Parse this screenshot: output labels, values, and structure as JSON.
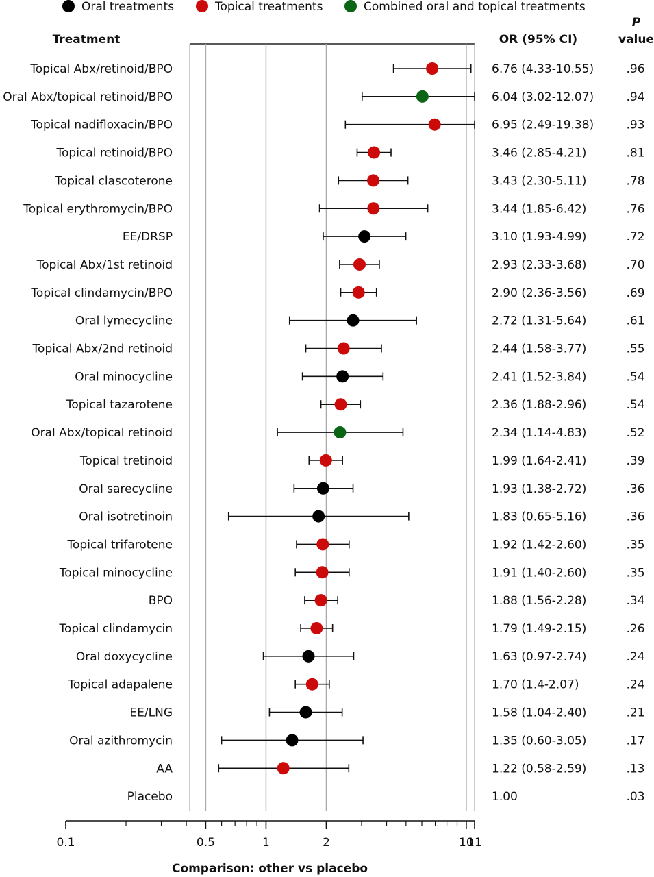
{
  "chart_data": {
    "type": "forest",
    "legend": [
      {
        "name": "Oral treatments",
        "color": "#000000"
      },
      {
        "name": "Topical treatments",
        "color": "#cc0a0a"
      },
      {
        "name": "Combined oral and topical treatments",
        "color": "#0a6614"
      }
    ],
    "legend_position": "top",
    "headers": {
      "treatment": "Treatment",
      "or": "OR (95% CI)",
      "p_line1": "P",
      "p_line2": "value"
    },
    "xlabel": "Comparison: other vs placebo",
    "x_scale": "log",
    "xlim": [
      0.1,
      11
    ],
    "x_ticks": [
      "0.1",
      "0.5",
      "1",
      "2",
      "10",
      "11"
    ],
    "x_tick_values": [
      0.1,
      0.5,
      1,
      2,
      10,
      11
    ],
    "gridlines": [
      0.5,
      1,
      2,
      10
    ],
    "rows": [
      {
        "label": "Topical Abx/retinoid/BPO",
        "group": "Topical treatments",
        "or": 6.76,
        "lo": 4.33,
        "hi": 10.55,
        "or_text": "6.76 (4.33-10.55)",
        "p": ".96"
      },
      {
        "label": "Oral Abx/topical retinoid/BPO",
        "group": "Combined oral and topical treatments",
        "or": 6.04,
        "lo": 3.02,
        "hi": 12.07,
        "or_text": "6.04 (3.02-12.07)",
        "p": ".94"
      },
      {
        "label": "Topical nadifloxacin/BPO",
        "group": "Topical treatments",
        "or": 6.95,
        "lo": 2.49,
        "hi": 19.38,
        "or_text": "6.95 (2.49-19.38)",
        "p": ".93"
      },
      {
        "label": "Topical retinoid/BPO",
        "group": "Topical treatments",
        "or": 3.46,
        "lo": 2.85,
        "hi": 4.21,
        "or_text": "3.46 (2.85-4.21)",
        "p": ".81"
      },
      {
        "label": "Topical clascoterone",
        "group": "Topical treatments",
        "or": 3.43,
        "lo": 2.3,
        "hi": 5.11,
        "or_text": "3.43 (2.30-5.11)",
        "p": ".78"
      },
      {
        "label": "Topical erythromycin/BPO",
        "group": "Topical treatments",
        "or": 3.44,
        "lo": 1.85,
        "hi": 6.42,
        "or_text": "3.44 (1.85-6.42)",
        "p": ".76"
      },
      {
        "label": "EE/DRSP",
        "group": "Oral treatments",
        "or": 3.1,
        "lo": 1.93,
        "hi": 4.99,
        "or_text": "3.10 (1.93-4.99)",
        "p": ".72"
      },
      {
        "label": "Topical Abx/1st retinoid",
        "group": "Topical treatments",
        "or": 2.93,
        "lo": 2.33,
        "hi": 3.68,
        "or_text": "2.93 (2.33-3.68)",
        "p": ".70"
      },
      {
        "label": "Topical clindamycin/BPO",
        "group": "Topical treatments",
        "or": 2.9,
        "lo": 2.36,
        "hi": 3.56,
        "or_text": "2.90 (2.36-3.56)",
        "p": ".69"
      },
      {
        "label": "Oral lymecycline",
        "group": "Oral treatments",
        "or": 2.72,
        "lo": 1.31,
        "hi": 5.64,
        "or_text": "2.72 (1.31-5.64)",
        "p": ".61"
      },
      {
        "label": "Topical Abx/2nd retinoid",
        "group": "Topical treatments",
        "or": 2.44,
        "lo": 1.58,
        "hi": 3.77,
        "or_text": "2.44 (1.58-3.77)",
        "p": ".55"
      },
      {
        "label": "Oral minocycline",
        "group": "Oral treatments",
        "or": 2.41,
        "lo": 1.52,
        "hi": 3.84,
        "or_text": "2.41 (1.52-3.84)",
        "p": ".54"
      },
      {
        "label": "Topical tazarotene",
        "group": "Topical treatments",
        "or": 2.36,
        "lo": 1.88,
        "hi": 2.96,
        "or_text": "2.36 (1.88-2.96)",
        "p": ".54"
      },
      {
        "label": "Oral Abx/topical retinoid",
        "group": "Combined oral and topical treatments",
        "or": 2.34,
        "lo": 1.14,
        "hi": 4.83,
        "or_text": "2.34 (1.14-4.83)",
        "p": ".52"
      },
      {
        "label": "Topical tretinoid",
        "group": "Topical treatments",
        "or": 1.99,
        "lo": 1.64,
        "hi": 2.41,
        "or_text": "1.99 (1.64-2.41)",
        "p": ".39"
      },
      {
        "label": "Oral sarecycline",
        "group": "Oral treatments",
        "or": 1.93,
        "lo": 1.38,
        "hi": 2.72,
        "or_text": "1.93 (1.38-2.72)",
        "p": ".36"
      },
      {
        "label": "Oral isotretinoin",
        "group": "Oral treatments",
        "or": 1.83,
        "lo": 0.65,
        "hi": 5.16,
        "or_text": "1.83 (0.65-5.16)",
        "p": ".36"
      },
      {
        "label": "Topical trifarotene",
        "group": "Topical treatments",
        "or": 1.92,
        "lo": 1.42,
        "hi": 2.6,
        "or_text": "1.92 (1.42-2.60)",
        "p": ".35"
      },
      {
        "label": "Topical minocycline",
        "group": "Topical treatments",
        "or": 1.91,
        "lo": 1.4,
        "hi": 2.6,
        "or_text": "1.91 (1.40-2.60)",
        "p": ".35"
      },
      {
        "label": "BPO",
        "group": "Topical treatments",
        "or": 1.88,
        "lo": 1.56,
        "hi": 2.28,
        "or_text": "1.88 (1.56-2.28)",
        "p": ".34"
      },
      {
        "label": "Topical clindamycin",
        "group": "Topical treatments",
        "or": 1.79,
        "lo": 1.49,
        "hi": 2.15,
        "or_text": "1.79 (1.49-2.15)",
        "p": ".26"
      },
      {
        "label": "Oral doxycycline",
        "group": "Oral treatments",
        "or": 1.63,
        "lo": 0.97,
        "hi": 2.74,
        "or_text": "1.63 (0.97-2.74)",
        "p": ".24"
      },
      {
        "label": "Topical adapalene",
        "group": "Topical treatments",
        "or": 1.7,
        "lo": 1.4,
        "hi": 2.07,
        "or_text": "1.70 (1.4-2.07)",
        "p": ".24"
      },
      {
        "label": "EE/LNG",
        "group": "Oral treatments",
        "or": 1.58,
        "lo": 1.04,
        "hi": 2.4,
        "or_text": "1.58 (1.04-2.40)",
        "p": ".21"
      },
      {
        "label": "Oral azithromycin",
        "group": "Oral treatments",
        "or": 1.35,
        "lo": 0.6,
        "hi": 3.05,
        "or_text": "1.35 (0.60-3.05)",
        "p": ".17"
      },
      {
        "label": "AA",
        "group": "Topical treatments",
        "or": 1.22,
        "lo": 0.58,
        "hi": 2.59,
        "or_text": "1.22 (0.58-2.59)",
        "p": ".13"
      },
      {
        "label": "Placebo",
        "group": null,
        "or": 1.0,
        "lo": null,
        "hi": null,
        "or_text": "1.00",
        "p": ".03"
      }
    ]
  }
}
